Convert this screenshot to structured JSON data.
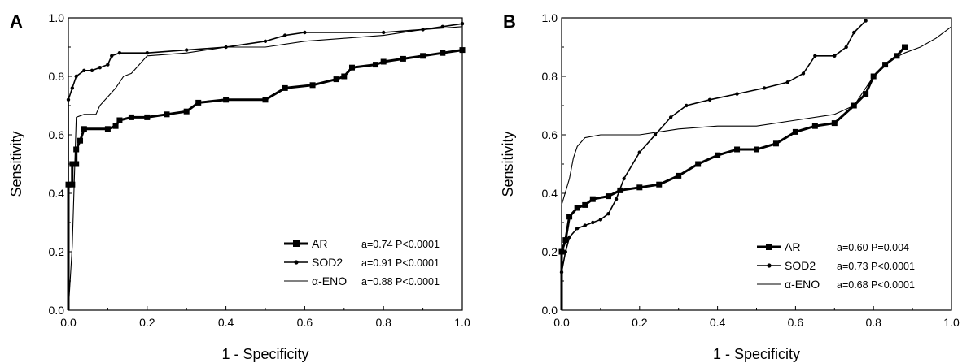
{
  "figure": {
    "panel_letters": [
      "A",
      "B"
    ]
  },
  "chart_data": [
    {
      "type": "line",
      "panel": "A",
      "xlabel": "1 - Specificity",
      "ylabel": "Sensitivity",
      "xlim": [
        0,
        1
      ],
      "ylim": [
        0,
        1
      ],
      "xticks": [
        "0.0",
        "0.2",
        "0.4",
        "0.6",
        "0.8",
        "1.0"
      ],
      "yticks": [
        "0.0",
        "0.2",
        "0.4",
        "0.6",
        "0.8",
        "1.0"
      ],
      "grid": false,
      "legend_position": "bottom-right",
      "series": [
        {
          "name": "AR",
          "stat": "a=0.74 P<0.0001",
          "style": "thick-square",
          "color": "#000000",
          "points": [
            [
              0,
              0
            ],
            [
              0,
              0.43
            ],
            [
              0.01,
              0.43
            ],
            [
              0.01,
              0.5
            ],
            [
              0.02,
              0.5
            ],
            [
              0.02,
              0.55
            ],
            [
              0.03,
              0.58
            ],
            [
              0.04,
              0.62
            ],
            [
              0.1,
              0.62
            ],
            [
              0.12,
              0.63
            ],
            [
              0.13,
              0.65
            ],
            [
              0.16,
              0.66
            ],
            [
              0.2,
              0.66
            ],
            [
              0.25,
              0.67
            ],
            [
              0.3,
              0.68
            ],
            [
              0.33,
              0.71
            ],
            [
              0.4,
              0.72
            ],
            [
              0.5,
              0.72
            ],
            [
              0.55,
              0.76
            ],
            [
              0.62,
              0.77
            ],
            [
              0.68,
              0.79
            ],
            [
              0.7,
              0.8
            ],
            [
              0.72,
              0.83
            ],
            [
              0.78,
              0.84
            ],
            [
              0.8,
              0.85
            ],
            [
              0.85,
              0.86
            ],
            [
              0.9,
              0.87
            ],
            [
              0.95,
              0.88
            ],
            [
              1.0,
              0.89
            ]
          ]
        },
        {
          "name": "SOD2",
          "stat": "a=0.91 P<0.0001",
          "style": "dotted-marker",
          "color": "#000000",
          "points": [
            [
              0,
              0
            ],
            [
              0,
              0.72
            ],
            [
              0.01,
              0.76
            ],
            [
              0.02,
              0.8
            ],
            [
              0.04,
              0.82
            ],
            [
              0.06,
              0.82
            ],
            [
              0.08,
              0.83
            ],
            [
              0.1,
              0.84
            ],
            [
              0.11,
              0.87
            ],
            [
              0.13,
              0.88
            ],
            [
              0.2,
              0.88
            ],
            [
              0.3,
              0.89
            ],
            [
              0.4,
              0.9
            ],
            [
              0.5,
              0.92
            ],
            [
              0.55,
              0.94
            ],
            [
              0.6,
              0.95
            ],
            [
              0.8,
              0.95
            ],
            [
              0.9,
              0.96
            ],
            [
              0.95,
              0.97
            ],
            [
              1.0,
              0.98
            ]
          ]
        },
        {
          "name": "α-ENO",
          "stat": "a=0.88 P<0.0001",
          "style": "thin-step",
          "color": "#000000",
          "points": [
            [
              0,
              0
            ],
            [
              0.01,
              0.22
            ],
            [
              0.02,
              0.66
            ],
            [
              0.04,
              0.67
            ],
            [
              0.07,
              0.67
            ],
            [
              0.08,
              0.7
            ],
            [
              0.1,
              0.73
            ],
            [
              0.12,
              0.76
            ],
            [
              0.14,
              0.8
            ],
            [
              0.16,
              0.81
            ],
            [
              0.18,
              0.84
            ],
            [
              0.2,
              0.87
            ],
            [
              0.3,
              0.88
            ],
            [
              0.4,
              0.9
            ],
            [
              0.5,
              0.9
            ],
            [
              0.6,
              0.92
            ],
            [
              0.7,
              0.93
            ],
            [
              0.8,
              0.94
            ],
            [
              0.9,
              0.96
            ],
            [
              1.0,
              0.97
            ],
            [
              1.0,
              0.99
            ]
          ]
        }
      ]
    },
    {
      "type": "line",
      "panel": "B",
      "xlabel": "1 - Specificity",
      "ylabel": "Sensitivity",
      "xlim": [
        0,
        1
      ],
      "ylim": [
        0,
        1
      ],
      "xticks": [
        "0.0",
        "0.2",
        "0.4",
        "0.6",
        "0.8",
        "1.0"
      ],
      "yticks": [
        "0.0",
        "0.2",
        "0.4",
        "0.6",
        "0.8",
        "1.0"
      ],
      "grid": false,
      "legend_position": "bottom-right",
      "series": [
        {
          "name": "AR",
          "stat": "a=0.60  P=0.004",
          "style": "thick-square",
          "color": "#000000",
          "points": [
            [
              0,
              0
            ],
            [
              0,
              0.2
            ],
            [
              0.01,
              0.24
            ],
            [
              0.02,
              0.32
            ],
            [
              0.04,
              0.35
            ],
            [
              0.06,
              0.36
            ],
            [
              0.08,
              0.38
            ],
            [
              0.12,
              0.39
            ],
            [
              0.15,
              0.41
            ],
            [
              0.2,
              0.42
            ],
            [
              0.25,
              0.43
            ],
            [
              0.3,
              0.46
            ],
            [
              0.35,
              0.5
            ],
            [
              0.4,
              0.53
            ],
            [
              0.45,
              0.55
            ],
            [
              0.5,
              0.55
            ],
            [
              0.55,
              0.57
            ],
            [
              0.6,
              0.61
            ],
            [
              0.65,
              0.63
            ],
            [
              0.7,
              0.64
            ],
            [
              0.75,
              0.7
            ],
            [
              0.78,
              0.74
            ],
            [
              0.8,
              0.8
            ],
            [
              0.83,
              0.84
            ],
            [
              0.86,
              0.87
            ],
            [
              0.88,
              0.9
            ]
          ]
        },
        {
          "name": "SOD2",
          "stat": "a=0.73  P<0.0001",
          "style": "dotted-marker",
          "color": "#000000",
          "points": [
            [
              0,
              0
            ],
            [
              0,
              0.13
            ],
            [
              0.01,
              0.2
            ],
            [
              0.02,
              0.25
            ],
            [
              0.04,
              0.28
            ],
            [
              0.06,
              0.29
            ],
            [
              0.08,
              0.3
            ],
            [
              0.1,
              0.31
            ],
            [
              0.12,
              0.33
            ],
            [
              0.14,
              0.38
            ],
            [
              0.16,
              0.45
            ],
            [
              0.2,
              0.54
            ],
            [
              0.24,
              0.6
            ],
            [
              0.28,
              0.66
            ],
            [
              0.32,
              0.7
            ],
            [
              0.38,
              0.72
            ],
            [
              0.45,
              0.74
            ],
            [
              0.52,
              0.76
            ],
            [
              0.58,
              0.78
            ],
            [
              0.62,
              0.81
            ],
            [
              0.65,
              0.87
            ],
            [
              0.7,
              0.87
            ],
            [
              0.73,
              0.9
            ],
            [
              0.75,
              0.95
            ],
            [
              0.78,
              0.99
            ]
          ]
        },
        {
          "name": "α-ENO",
          "stat": "a=0.68  P<0.0001",
          "style": "thin-step",
          "color": "#000000",
          "points": [
            [
              0,
              0
            ],
            [
              0,
              0.36
            ],
            [
              0.02,
              0.45
            ],
            [
              0.03,
              0.52
            ],
            [
              0.04,
              0.56
            ],
            [
              0.06,
              0.59
            ],
            [
              0.1,
              0.6
            ],
            [
              0.2,
              0.6
            ],
            [
              0.25,
              0.61
            ],
            [
              0.3,
              0.62
            ],
            [
              0.4,
              0.63
            ],
            [
              0.5,
              0.63
            ],
            [
              0.6,
              0.65
            ],
            [
              0.7,
              0.67
            ],
            [
              0.75,
              0.7
            ],
            [
              0.78,
              0.76
            ],
            [
              0.8,
              0.8
            ],
            [
              0.85,
              0.86
            ],
            [
              0.88,
              0.88
            ],
            [
              0.92,
              0.9
            ],
            [
              0.96,
              0.93
            ],
            [
              1.0,
              0.97
            ]
          ]
        }
      ]
    }
  ]
}
